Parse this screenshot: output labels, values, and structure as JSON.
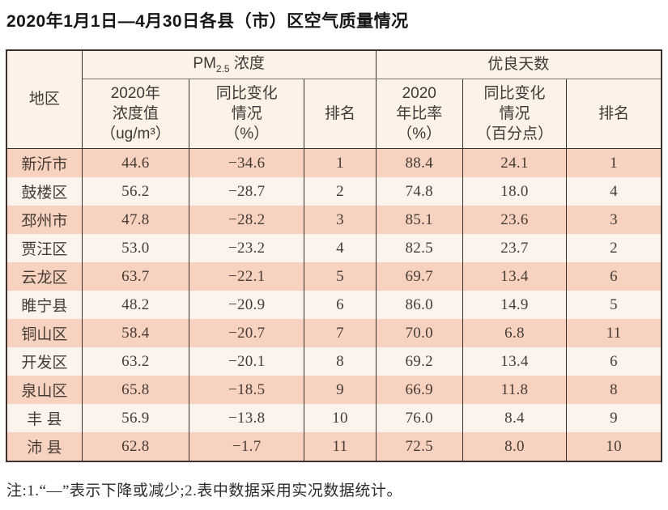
{
  "title": "2020年1月1日—4月30日各县（市）区空气质量情况",
  "table": {
    "header": {
      "region": "地区",
      "pm25": {
        "prefix": "PM",
        "sub": "2.5",
        "suffix": " 浓度"
      },
      "good_days": "优良天数",
      "pm_value": "2020年\n浓度值\n（ug/m³）",
      "pm_change": "同比变化\n情况\n（%）",
      "pm_rank": "排名",
      "gd_ratio": "2020\n年比率\n（%）",
      "gd_change": "同比变化\n情况\n（百分点）",
      "gd_rank": "排名"
    },
    "rows": [
      {
        "region": "新沂市",
        "pm_value": "44.6",
        "pm_change": "−34.6",
        "pm_rank": "1",
        "gd_ratio": "88.4",
        "gd_change": "24.1",
        "gd_rank": "1"
      },
      {
        "region": "鼓楼区",
        "pm_value": "56.2",
        "pm_change": "−28.7",
        "pm_rank": "2",
        "gd_ratio": "74.8",
        "gd_change": "18.0",
        "gd_rank": "4"
      },
      {
        "region": "邳州市",
        "pm_value": "47.8",
        "pm_change": "−28.2",
        "pm_rank": "3",
        "gd_ratio": "85.1",
        "gd_change": "23.6",
        "gd_rank": "3"
      },
      {
        "region": "贾汪区",
        "pm_value": "53.0",
        "pm_change": "−23.2",
        "pm_rank": "4",
        "gd_ratio": "82.5",
        "gd_change": "23.7",
        "gd_rank": "2"
      },
      {
        "region": "云龙区",
        "pm_value": "63.7",
        "pm_change": "−22.1",
        "pm_rank": "5",
        "gd_ratio": "69.7",
        "gd_change": "13.4",
        "gd_rank": "6"
      },
      {
        "region": "睢宁县",
        "pm_value": "48.2",
        "pm_change": "−20.9",
        "pm_rank": "6",
        "gd_ratio": "86.0",
        "gd_change": "14.9",
        "gd_rank": "5"
      },
      {
        "region": "铜山区",
        "pm_value": "58.4",
        "pm_change": "−20.7",
        "pm_rank": "7",
        "gd_ratio": "70.0",
        "gd_change": "6.8",
        "gd_rank": "11"
      },
      {
        "region": "开发区",
        "pm_value": "63.2",
        "pm_change": "−20.1",
        "pm_rank": "8",
        "gd_ratio": "69.2",
        "gd_change": "13.4",
        "gd_rank": "6"
      },
      {
        "region": "泉山区",
        "pm_value": "65.8",
        "pm_change": "−18.5",
        "pm_rank": "9",
        "gd_ratio": "66.9",
        "gd_change": "11.8",
        "gd_rank": "8"
      },
      {
        "region": "丰 县",
        "pm_value": "56.9",
        "pm_change": "−13.8",
        "pm_rank": "10",
        "gd_ratio": "76.0",
        "gd_change": "8.4",
        "gd_rank": "9"
      },
      {
        "region": "沛 县",
        "pm_value": "62.8",
        "pm_change": "−1.7",
        "pm_rank": "11",
        "gd_ratio": "72.5",
        "gd_change": "8.0",
        "gd_rank": "10"
      }
    ]
  },
  "note": "注:1.“—”表示下降或减少;2.表中数据采用实况数据统计。",
  "colors": {
    "row-odd": "#f8d2c0",
    "row-even": "#fdf3ed",
    "header-bg": "#fdf2e8",
    "border-dark": "#39312c"
  }
}
